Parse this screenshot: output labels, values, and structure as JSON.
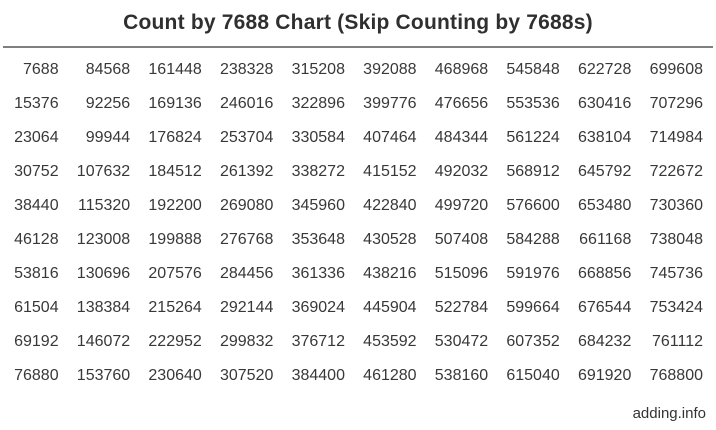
{
  "title": "Count by 7688 Chart (Skip Counting by 7688s)",
  "footer": {
    "site_label": "adding.info"
  },
  "colors": {
    "background": "#ffffff",
    "text": "#383838",
    "title_text": "#2f2f2f",
    "rule": "#808080"
  },
  "chart_data": {
    "type": "table",
    "title": "Count by 7688 Chart (Skip Counting by 7688s)",
    "step": 7688,
    "columns": 10,
    "row_count": 10,
    "layout_note": "column-major: each column counts down by +7688; value = 7688 * (col_index*10 + row_index + 1)",
    "rows": [
      [
        7688,
        84568,
        161448,
        238328,
        315208,
        392088,
        468968,
        545848,
        622728,
        699608
      ],
      [
        15376,
        92256,
        169136,
        246016,
        322896,
        399776,
        476656,
        553536,
        630416,
        707296
      ],
      [
        23064,
        99944,
        176824,
        253704,
        330584,
        407464,
        484344,
        561224,
        638104,
        714984
      ],
      [
        30752,
        107632,
        184512,
        261392,
        338272,
        415152,
        492032,
        568912,
        645792,
        722672
      ],
      [
        38440,
        115320,
        192200,
        269080,
        345960,
        422840,
        499720,
        576600,
        653480,
        730360
      ],
      [
        46128,
        123008,
        199888,
        276768,
        353648,
        430528,
        507408,
        584288,
        661168,
        738048
      ],
      [
        53816,
        130696,
        207576,
        284456,
        361336,
        438216,
        515096,
        591976,
        668856,
        745736
      ],
      [
        61504,
        138384,
        215264,
        292144,
        369024,
        445904,
        522784,
        599664,
        676544,
        753424
      ],
      [
        69192,
        146072,
        222952,
        299832,
        376712,
        453592,
        530472,
        607352,
        684232,
        761112
      ],
      [
        76880,
        153760,
        230640,
        307520,
        384400,
        461280,
        538160,
        615040,
        691920,
        768800
      ]
    ]
  }
}
